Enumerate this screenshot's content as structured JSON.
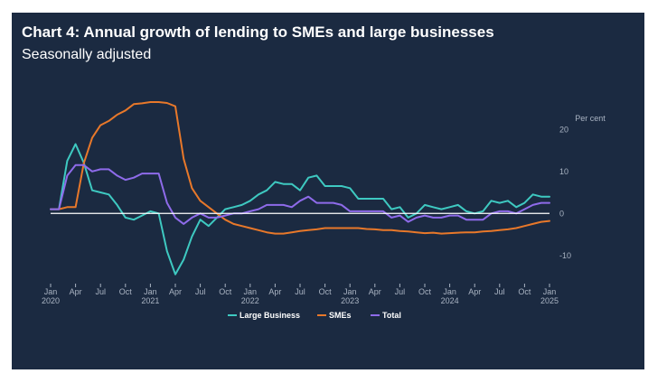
{
  "title": "Chart 4: Annual growth of lending to SMEs and large businesses",
  "subtitle": "Seasonally adjusted",
  "colors": {
    "background": "#1b2a41",
    "large_business": "#3ec9c1",
    "smes": "#e8782a",
    "total": "#8e6bea",
    "zero_line": "#ffffff"
  },
  "chart_data": {
    "type": "line",
    "title": "Chart 4: Annual growth of lending to SMEs and large businesses",
    "subtitle": "Seasonally adjusted",
    "unit_label": "Per cent",
    "ylim": [
      -15,
      25
    ],
    "yticks": [
      20,
      10,
      0,
      -10
    ],
    "xlim": [
      "2020-01",
      "2025-01"
    ],
    "xticks": [
      {
        "label": "Jan",
        "year": "2020",
        "date": "2020-01"
      },
      {
        "label": "Apr",
        "year": "",
        "date": "2020-04"
      },
      {
        "label": "Jul",
        "year": "",
        "date": "2020-07"
      },
      {
        "label": "Oct",
        "year": "",
        "date": "2020-10"
      },
      {
        "label": "Jan",
        "year": "2021",
        "date": "2021-01"
      },
      {
        "label": "Apr",
        "year": "",
        "date": "2021-04"
      },
      {
        "label": "Jul",
        "year": "",
        "date": "2021-07"
      },
      {
        "label": "Oct",
        "year": "",
        "date": "2021-10"
      },
      {
        "label": "Jan",
        "year": "2022",
        "date": "2022-01"
      },
      {
        "label": "Apr",
        "year": "",
        "date": "2022-04"
      },
      {
        "label": "Jul",
        "year": "",
        "date": "2022-07"
      },
      {
        "label": "Oct",
        "year": "",
        "date": "2022-10"
      },
      {
        "label": "Jan",
        "year": "2023",
        "date": "2023-01"
      },
      {
        "label": "Apr",
        "year": "",
        "date": "2023-04"
      },
      {
        "label": "Jul",
        "year": "",
        "date": "2023-07"
      },
      {
        "label": "Oct",
        "year": "",
        "date": "2023-10"
      },
      {
        "label": "Jan",
        "year": "2024",
        "date": "2024-01"
      },
      {
        "label": "Apr",
        "year": "",
        "date": "2024-04"
      },
      {
        "label": "Jul",
        "year": "",
        "date": "2024-07"
      },
      {
        "label": "Oct",
        "year": "",
        "date": "2024-10"
      },
      {
        "label": "Jan",
        "year": "2025",
        "date": "2025-01"
      }
    ],
    "x": [
      "2020-01",
      "2020-02",
      "2020-03",
      "2020-04",
      "2020-05",
      "2020-06",
      "2020-07",
      "2020-08",
      "2020-09",
      "2020-10",
      "2020-11",
      "2020-12",
      "2021-01",
      "2021-02",
      "2021-03",
      "2021-04",
      "2021-05",
      "2021-06",
      "2021-07",
      "2021-08",
      "2021-09",
      "2021-10",
      "2021-11",
      "2021-12",
      "2022-01",
      "2022-02",
      "2022-03",
      "2022-04",
      "2022-05",
      "2022-06",
      "2022-07",
      "2022-08",
      "2022-09",
      "2022-10",
      "2022-11",
      "2022-12",
      "2023-01",
      "2023-02",
      "2023-03",
      "2023-04",
      "2023-05",
      "2023-06",
      "2023-07",
      "2023-08",
      "2023-09",
      "2023-10",
      "2023-11",
      "2023-12",
      "2024-01",
      "2024-02",
      "2024-03",
      "2024-04",
      "2024-05",
      "2024-06",
      "2024-07",
      "2024-08",
      "2024-09",
      "2024-10",
      "2024-11",
      "2024-12",
      "2025-01"
    ],
    "series": [
      {
        "name": "Large Business",
        "color": "#3ec9c1",
        "values": [
          1,
          1,
          12.5,
          16.5,
          12,
          5.5,
          5,
          4.5,
          2,
          -1,
          -1.5,
          -0.5,
          0.5,
          0,
          -9,
          -14.5,
          -11,
          -5.5,
          -1.5,
          -3,
          -1,
          1,
          1.5,
          2,
          3,
          4.5,
          5.5,
          7.5,
          7,
          7,
          5.5,
          8.5,
          9,
          6.5,
          6.5,
          6.5,
          6,
          3.5,
          3.5,
          3.5,
          3.5,
          1,
          1.5,
          -1,
          0,
          2,
          1.5,
          1,
          1.5,
          2,
          0.5,
          0,
          0.5,
          3,
          2.5,
          3,
          1.5,
          2.5,
          4.5,
          4,
          4
        ]
      },
      {
        "name": "SMEs",
        "color": "#e8782a",
        "values": [
          1,
          1,
          1.5,
          1.5,
          12,
          18,
          21,
          22,
          23.5,
          24.5,
          26,
          26.2,
          26.5,
          26.5,
          26.3,
          25.5,
          13,
          6,
          3,
          1.5,
          0,
          -1.5,
          -2.5,
          -3,
          -3.5,
          -4,
          -4.5,
          -4.8,
          -4.8,
          -4.5,
          -4.2,
          -4,
          -3.8,
          -3.5,
          -3.5,
          -3.5,
          -3.5,
          -3.5,
          -3.7,
          -3.8,
          -4,
          -4,
          -4.2,
          -4.3,
          -4.5,
          -4.7,
          -4.6,
          -4.8,
          -4.7,
          -4.6,
          -4.5,
          -4.5,
          -4.3,
          -4.2,
          -4,
          -3.8,
          -3.5,
          -3,
          -2.5,
          -2,
          -1.8
        ]
      },
      {
        "name": "Total",
        "color": "#8e6bea",
        "values": [
          1,
          1,
          9,
          11.5,
          11.5,
          10,
          10.5,
          10.5,
          9,
          8,
          8.5,
          9.5,
          9.5,
          9.5,
          2.5,
          -1,
          -2.5,
          -1,
          0,
          -1,
          -1,
          -0.5,
          0,
          0,
          0.5,
          1,
          2,
          2,
          2,
          1.5,
          3,
          4,
          2.5,
          2.5,
          2.5,
          2,
          0.5,
          0.5,
          0.5,
          0.5,
          0.5,
          -1,
          -0.5,
          -2,
          -1,
          -0.5,
          -1,
          -1,
          -0.5,
          -0.5,
          -1.5,
          -1.5,
          -1.5,
          0,
          0.5,
          0.5,
          0,
          1,
          2,
          2.5,
          2.5
        ]
      }
    ],
    "legend": {
      "position": "bottom-center",
      "entries": [
        "Large Business",
        "SMEs",
        "Total"
      ]
    },
    "grid": false
  }
}
